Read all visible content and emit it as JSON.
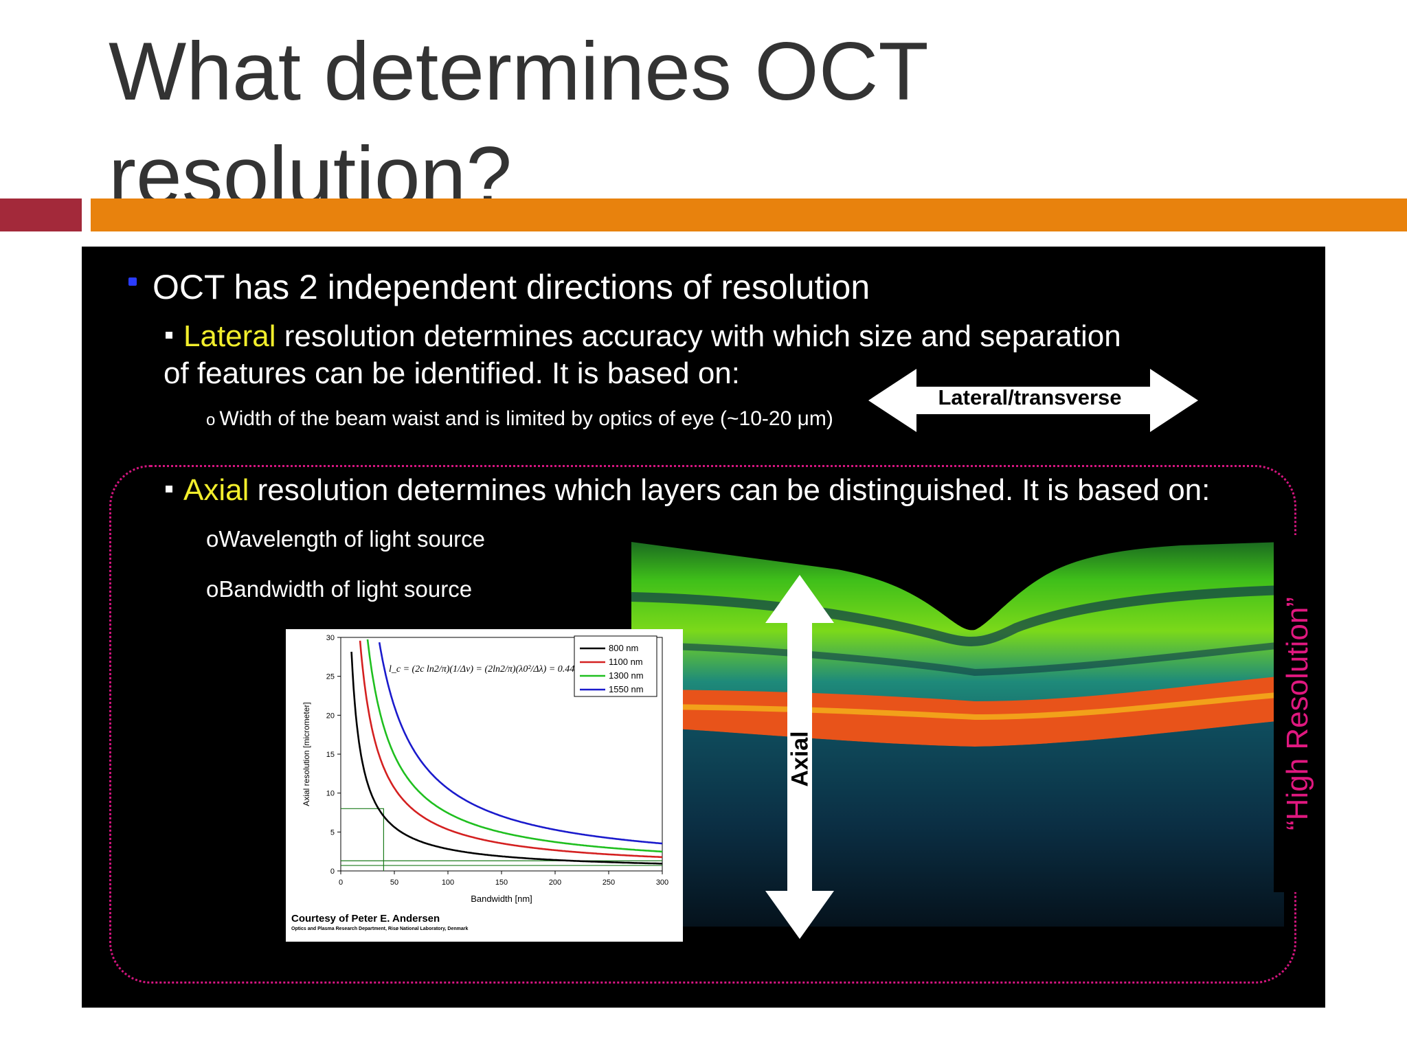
{
  "slide": {
    "title_line1": "What determines OCT",
    "title_line2": "resolution?",
    "bullet1": "OCT has 2 independent directions of resolution",
    "lateral_keyword": "Lateral",
    "lateral_text1": " resolution determines accuracy with which size and separation",
    "lateral_text2": "of features can be identified. It is based on:",
    "lateral_sub": "Width of the beam waist and is limited by optics of eye (~10-20 μm)",
    "lateral_arrow_label": "Lateral/transverse",
    "axial_keyword": "Axial",
    "axial_text": " resolution determines which layers can be distinguished. It is based on:",
    "axial_sub1": "Wavelength of light source",
    "axial_sub2": "Bandwidth of light source",
    "axial_arrow_label": "Axial",
    "high_res_label": "“High Resolution”",
    "credit": "Courtesy of Peter E. Andersen",
    "credit_small": "Optics and Plasma Research Department, Risø National Laboratory, Denmark",
    "sub_bullet_marker": "o"
  },
  "chart_data": {
    "type": "line",
    "xlabel": "Bandwidth [nm]",
    "ylabel": "Axial resolution [micrometer]",
    "xlim": [
      0,
      300
    ],
    "ylim": [
      0,
      30
    ],
    "xticks": [
      0,
      50,
      100,
      150,
      200,
      250,
      300
    ],
    "yticks": [
      0,
      5,
      10,
      15,
      20,
      25,
      30
    ],
    "formula": "l_c = (2c ln2/π)(1/Δν) = (2ln2/π)(λ0²/Δλ) = 0.44 λ0²/Δλ",
    "legend_position": "top-right",
    "series": [
      {
        "name": "800 nm",
        "wavelength_nm": 800,
        "color": "#000000"
      },
      {
        "name": "1100 nm",
        "wavelength_nm": 1100,
        "color": "#d42020"
      },
      {
        "name": "1300 nm",
        "wavelength_nm": 1300,
        "color": "#1fbf1f"
      },
      {
        "name": "1550 nm",
        "wavelength_nm": 1550,
        "color": "#1a1acc"
      }
    ]
  }
}
